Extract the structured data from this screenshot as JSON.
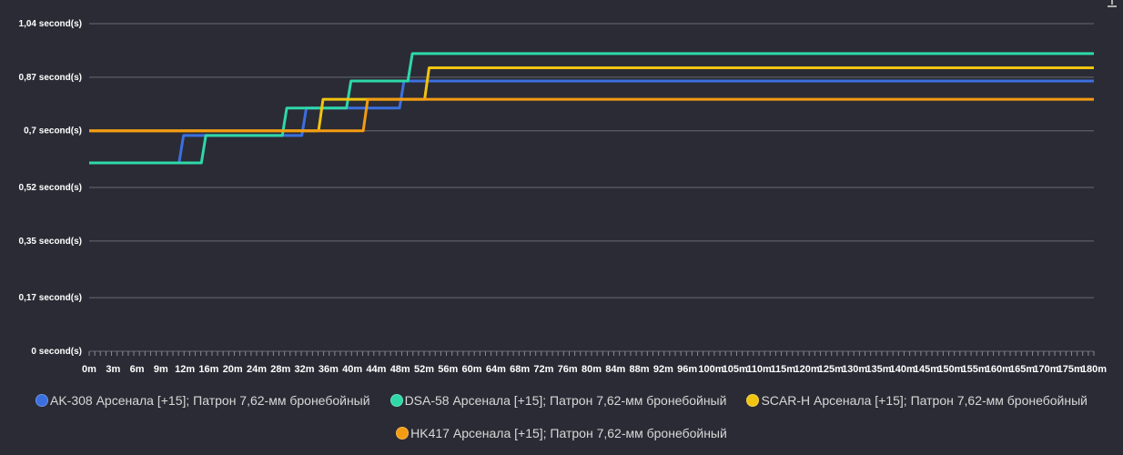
{
  "chart_data": {
    "type": "line",
    "x_labels": [
      "0m",
      "3m",
      "6m",
      "9m",
      "12m",
      "16m",
      "20m",
      "24m",
      "28m",
      "32m",
      "36m",
      "40m",
      "44m",
      "48m",
      "52m",
      "56m",
      "60m",
      "64m",
      "68m",
      "72m",
      "76m",
      "80m",
      "84m",
      "88m",
      "92m",
      "96m",
      "100m",
      "105m",
      "110m",
      "115m",
      "120m",
      "125m",
      "130m",
      "135m",
      "140m",
      "145m",
      "150m",
      "155m",
      "160m",
      "165m",
      "170m",
      "175m",
      "180m"
    ],
    "y_ticks": [
      {
        "value": 0,
        "label": "0 second(s)"
      },
      {
        "value": 0.17,
        "label": "0,17 second(s)"
      },
      {
        "value": 0.35,
        "label": "0,35 second(s)"
      },
      {
        "value": 0.52,
        "label": "0,52 second(s)"
      },
      {
        "value": 0.7,
        "label": "0,7 second(s)"
      },
      {
        "value": 0.87,
        "label": "0,87 second(s)"
      },
      {
        "value": 1.04,
        "label": "1,04 second(s)"
      }
    ],
    "ylim": [
      0,
      1.04
    ],
    "xlim": [
      0,
      180
    ],
    "series": [
      {
        "name": "AK-308 Арсенала [+15]; Патрон 7,62-мм бронебойный",
        "color": "#3b6fe0",
        "steps": [
          [
            0,
            0.598
          ],
          [
            16.5,
            0.685
          ],
          [
            38.5,
            0.772
          ],
          [
            56,
            0.858
          ]
        ]
      },
      {
        "name": "DSA-58 Арсенала [+15]; Патрон 7,62-мм бронебойный",
        "color": "#2ed8a7",
        "steps": [
          [
            0,
            0.598
          ],
          [
            20.5,
            0.685
          ],
          [
            35,
            0.772
          ],
          [
            46.5,
            0.858
          ],
          [
            57.5,
            0.945
          ]
        ]
      },
      {
        "name": "SCAR-H Арсенала [+15]; Патрон 7,62-мм бронебойный",
        "color": "#f1c40f",
        "steps": [
          [
            0,
            0.7
          ],
          [
            41.5,
            0.8
          ],
          [
            60.5,
            0.9
          ]
        ]
      },
      {
        "name": "HK417 Арсенала [+15]; Патрон 7,62-мм бронебойный",
        "color": "#f39c12",
        "steps": [
          [
            0,
            0.7
          ],
          [
            49.5,
            0.8
          ]
        ]
      }
    ]
  },
  "menu_icon": "download-icon"
}
